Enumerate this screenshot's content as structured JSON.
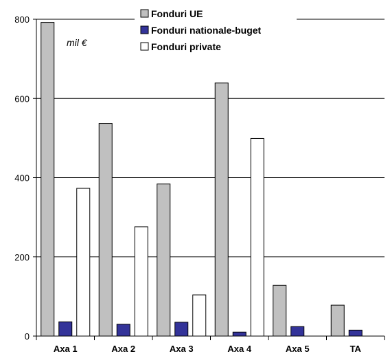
{
  "chart_data": {
    "type": "bar",
    "unit_label": "mil €",
    "categories": [
      "Axa 1",
      "Axa 2",
      "Axa 3",
      "Axa 4",
      "Axa 5",
      "TA"
    ],
    "series": [
      {
        "name": "Fonduri UE",
        "values": [
          792,
          537,
          384,
          639,
          128,
          78
        ],
        "color": "#c0c0c0"
      },
      {
        "name": "Fonduri nationale-buget",
        "values": [
          36,
          30,
          35,
          10,
          24,
          15
        ],
        "color": "#333399"
      },
      {
        "name": "Fonduri private",
        "values": [
          373,
          276,
          104,
          499,
          0,
          0
        ],
        "color": "#ffffff"
      }
    ],
    "ylim": [
      0,
      800
    ],
    "yticks": [
      0,
      200,
      400,
      600,
      800
    ],
    "grid": true,
    "legend_position": "top"
  }
}
